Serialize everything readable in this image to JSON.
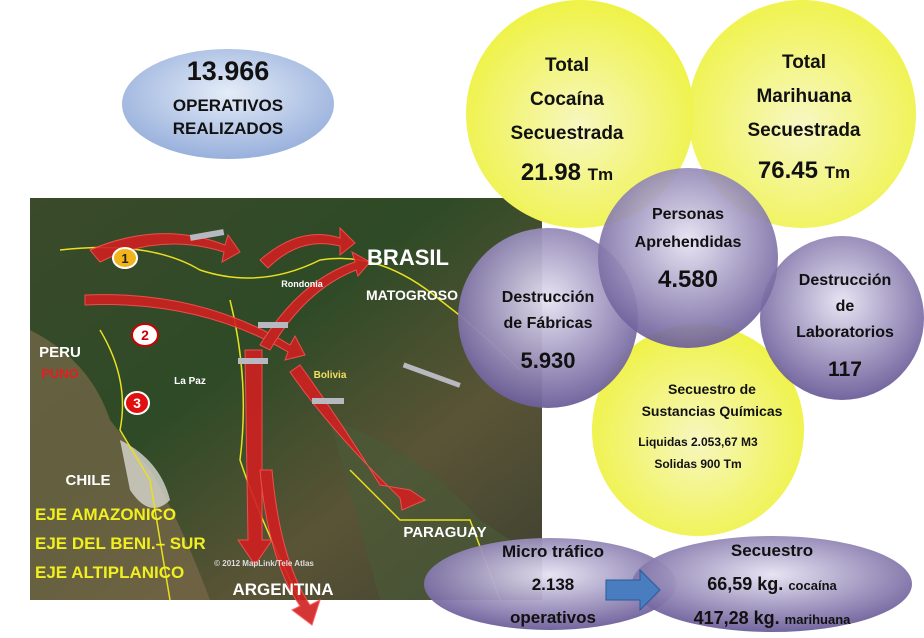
{
  "summary": {
    "number": "13.966",
    "lines": [
      "OPERATIVOS",
      "REALIZADOS"
    ]
  },
  "stats": {
    "cocaina": {
      "lines": [
        "Total",
        "Cocaína",
        "Secuestrada"
      ],
      "value": "21.98",
      "unit": "Tm"
    },
    "marihuana": {
      "lines": [
        "Total",
        "Marihuana",
        "Secuestrada"
      ],
      "value": "76.45",
      "unit": "Tm"
    },
    "personas": {
      "lines": [
        "Personas",
        "Aprehendidas"
      ],
      "value": "4.580"
    },
    "fabricas": {
      "lines": [
        "Destrucción",
        "de Fábricas"
      ],
      "value": "5.930"
    },
    "laboratorios": {
      "lines": [
        "Destrucción",
        "de",
        "Laboratorios"
      ],
      "value": "117"
    },
    "quimicos": {
      "lines": [
        "Secuestro de",
        "Sustancias Químicas",
        "Liquidas 2.053,67 M3",
        "Solidas 900 Tm"
      ]
    }
  },
  "micro": {
    "lines": [
      "Micro tráfico",
      "2.138",
      "operativos"
    ]
  },
  "secuestro": {
    "title": "Secuestro",
    "items": [
      {
        "amount": "66,59 kg.",
        "drug": "cocaína"
      },
      {
        "amount": "417,28 kg.",
        "drug": "marihuana"
      }
    ]
  },
  "map": {
    "labels": [
      "BRASIL",
      "MATOGROSO",
      "PERU",
      "PUNO",
      "CHILE",
      "PARAGUAY",
      "ARGENTINA",
      "La Paz",
      "Bolivia",
      "Rondonia"
    ],
    "markers": [
      "1",
      "2",
      "3"
    ],
    "axes": [
      "EJE AMAZONICO",
      "EJE DEL BENI.– SUR",
      "EJE ALTIPLANICO"
    ],
    "credits": "© 2012 MapLink/Tele Atlas"
  }
}
